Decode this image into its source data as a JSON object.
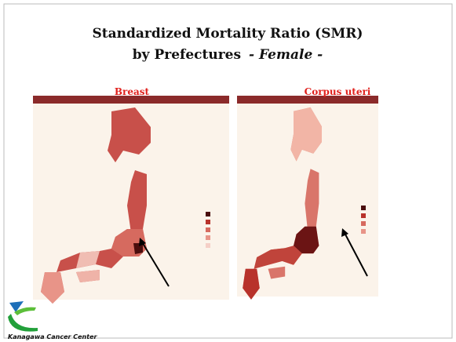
{
  "title": {
    "line1": "Standardized Mortality Ratio (SMR)",
    "line2": "by Prefectures",
    "line2_suffix": "- Female -"
  },
  "maps": [
    {
      "label": "Breast"
    },
    {
      "label": "Corpus uteri"
    }
  ],
  "footer": {
    "organization": "Kanagawa Cancer Center"
  }
}
